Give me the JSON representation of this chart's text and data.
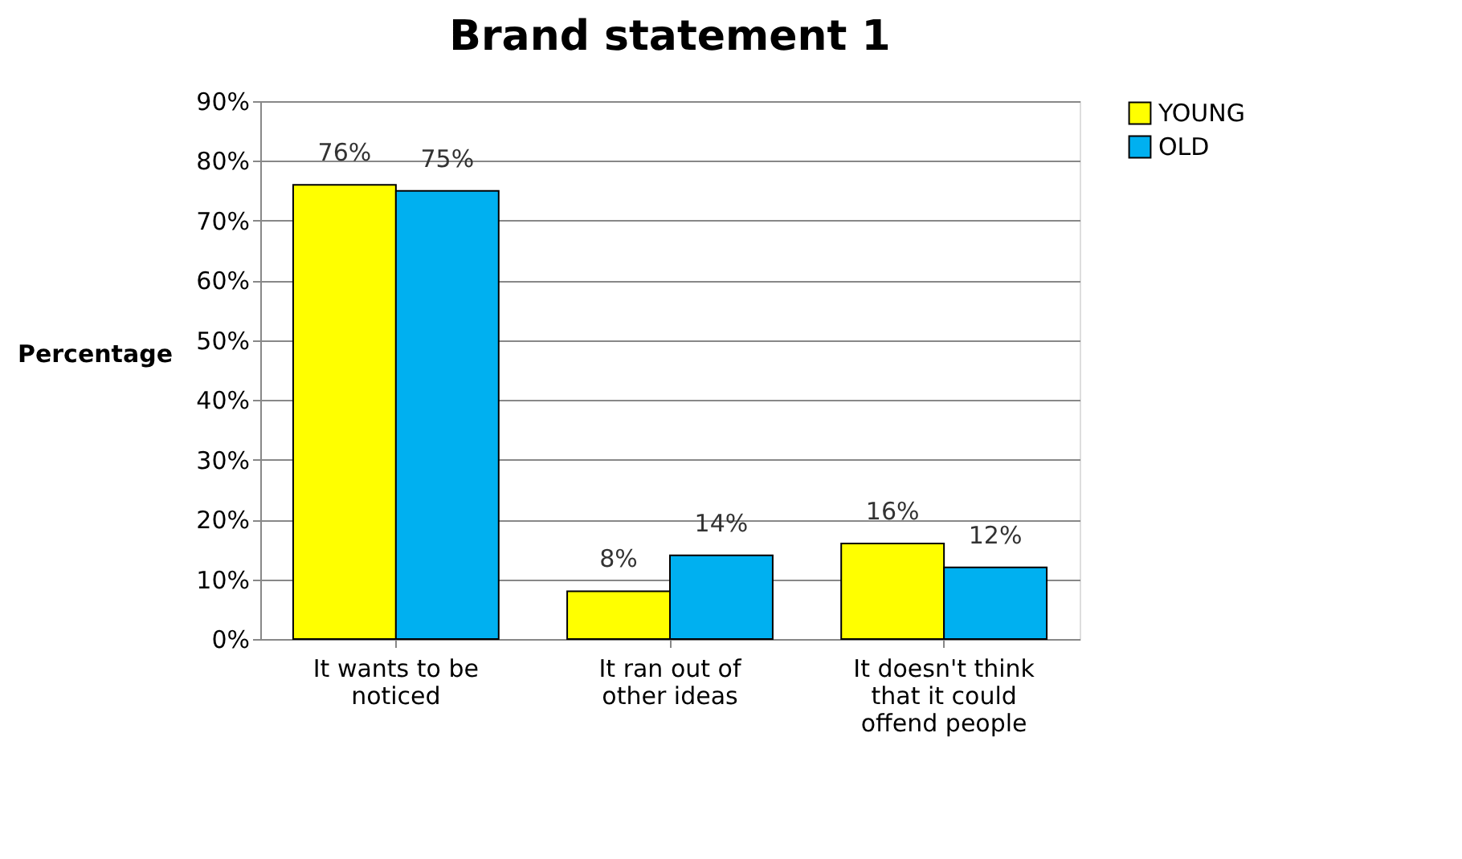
{
  "chart_data": {
    "type": "bar",
    "title": "Brand statement 1",
    "ylabel": "Percentage",
    "categories": [
      "It wants to be noticed",
      "It ran out of other ideas",
      "It doesn't think that it could offend people"
    ],
    "series": [
      {
        "name": "YOUNG",
        "color": "#ffff00",
        "values": [
          76,
          8,
          16
        ],
        "value_labels": [
          "76%",
          "8%",
          "16%"
        ]
      },
      {
        "name": "OLD",
        "color": "#00b0f0",
        "values": [
          75,
          14,
          12
        ],
        "value_labels": [
          "75%",
          "14%",
          "12%"
        ]
      }
    ],
    "ylim": [
      0,
      90
    ],
    "yticks": [
      {
        "value": 0,
        "label": "0%"
      },
      {
        "value": 10,
        "label": "10%"
      },
      {
        "value": 20,
        "label": "20%"
      },
      {
        "value": 30,
        "label": "30%"
      },
      {
        "value": 40,
        "label": "40%"
      },
      {
        "value": 50,
        "label": "50%"
      },
      {
        "value": 60,
        "label": "60%"
      },
      {
        "value": 70,
        "label": "70%"
      },
      {
        "value": 80,
        "label": "80%"
      },
      {
        "value": 90,
        "label": "90%"
      }
    ],
    "grid": "y",
    "legend": "right"
  }
}
